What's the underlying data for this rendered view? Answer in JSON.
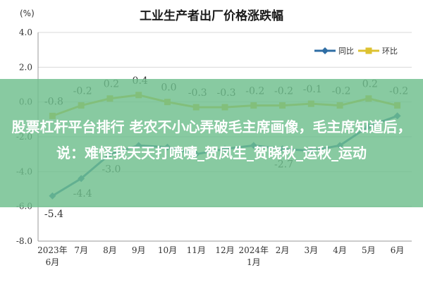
{
  "chart_data": {
    "type": "line",
    "title": "工业生产者出厂价格涨跌幅",
    "unit_label": "(%)",
    "categories": [
      [
        "2023年",
        "6月"
      ],
      [
        "7月"
      ],
      [
        "8月"
      ],
      [
        "9月"
      ],
      [
        "10月"
      ],
      [
        "11月"
      ],
      [
        "12月"
      ],
      [
        "2024年",
        "1月"
      ],
      [
        "2月"
      ],
      [
        "3月"
      ],
      [
        "4月"
      ],
      [
        "5月"
      ],
      [
        "6月"
      ]
    ],
    "series": [
      {
        "name": "同比",
        "color": "#2e6da4",
        "values": [
          -5.4,
          -4.4,
          -3.0,
          -2.5,
          -2.6,
          -3.0,
          -2.7,
          -2.5,
          -2.7,
          -2.8,
          -2.5,
          -1.4,
          -0.8
        ],
        "labels": [
          "-5.4",
          "-4.4",
          "-3.0",
          "",
          "",
          "",
          "",
          "",
          "-2.7",
          "",
          "",
          "",
          ""
        ]
      },
      {
        "name": "环比",
        "color": "#ddc230",
        "values": [
          -0.8,
          -0.2,
          0.2,
          0.4,
          0.0,
          -0.3,
          -0.3,
          -0.2,
          -0.2,
          -0.1,
          -0.2,
          0.2,
          -0.2
        ],
        "labels": [
          "-0.8",
          "-0.2",
          "0.2",
          "0.4",
          "0.0",
          "-0.3",
          "-0.3",
          "-0.2",
          "-0.2",
          "-0.1",
          "-0.2",
          "0.2",
          "-0.2"
        ]
      }
    ],
    "ylim": [
      -8.0,
      4.0
    ],
    "yticks": [
      "4.0",
      "2.0",
      "0.0",
      "-2.0",
      "-4.0",
      "-6.0",
      "-8.0"
    ],
    "grid": true,
    "legend_position": "top-right"
  },
  "overlay": {
    "text": "股票杠杆平台排行 老农不小心弄破毛主席画像，毛主席知道后，说：难怪我天天打喷嚏_贺凤生_贺晓秋_运秋_运动"
  }
}
